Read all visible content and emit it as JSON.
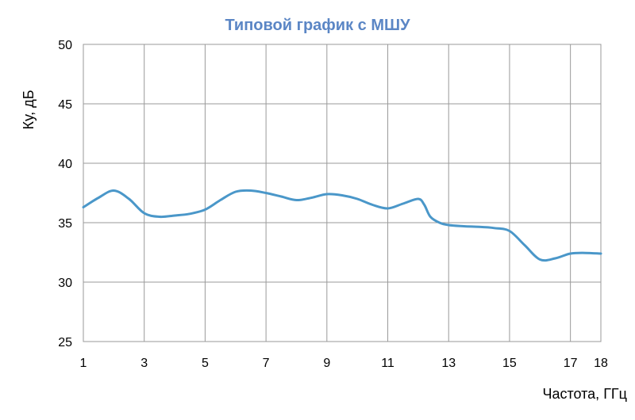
{
  "chart_data": {
    "type": "line",
    "title": "Типовой график с МШУ",
    "xlabel": "Частота, ГГц",
    "ylabel": "Ку, дБ",
    "xlim": [
      1,
      18
    ],
    "ylim": [
      25,
      50
    ],
    "xticks": [
      1,
      3,
      5,
      7,
      9,
      11,
      13,
      15,
      17,
      18
    ],
    "yticks": [
      25,
      30,
      35,
      40,
      45,
      50
    ],
    "grid": true,
    "series": [
      {
        "color": "#4a97c9",
        "x": [
          1,
          1.5,
          2,
          2.5,
          3,
          3.5,
          4,
          4.5,
          5,
          5.5,
          6,
          6.5,
          7,
          7.5,
          8,
          8.5,
          9,
          9.5,
          10,
          10.5,
          11,
          11.5,
          12,
          12.2,
          12.4,
          12.7,
          13,
          13.5,
          14,
          14.5,
          15,
          15.5,
          16,
          16.5,
          17,
          17.5,
          18
        ],
        "y": [
          36.3,
          37.1,
          37.7,
          37.0,
          35.8,
          35.5,
          35.6,
          35.75,
          36.1,
          36.9,
          37.6,
          37.7,
          37.5,
          37.2,
          36.9,
          37.1,
          37.4,
          37.3,
          37.0,
          36.5,
          36.2,
          36.6,
          37.0,
          36.5,
          35.5,
          35.0,
          34.8,
          34.7,
          34.65,
          34.55,
          34.3,
          33.1,
          31.9,
          32.0,
          32.4,
          32.45,
          32.4
        ]
      }
    ]
  }
}
